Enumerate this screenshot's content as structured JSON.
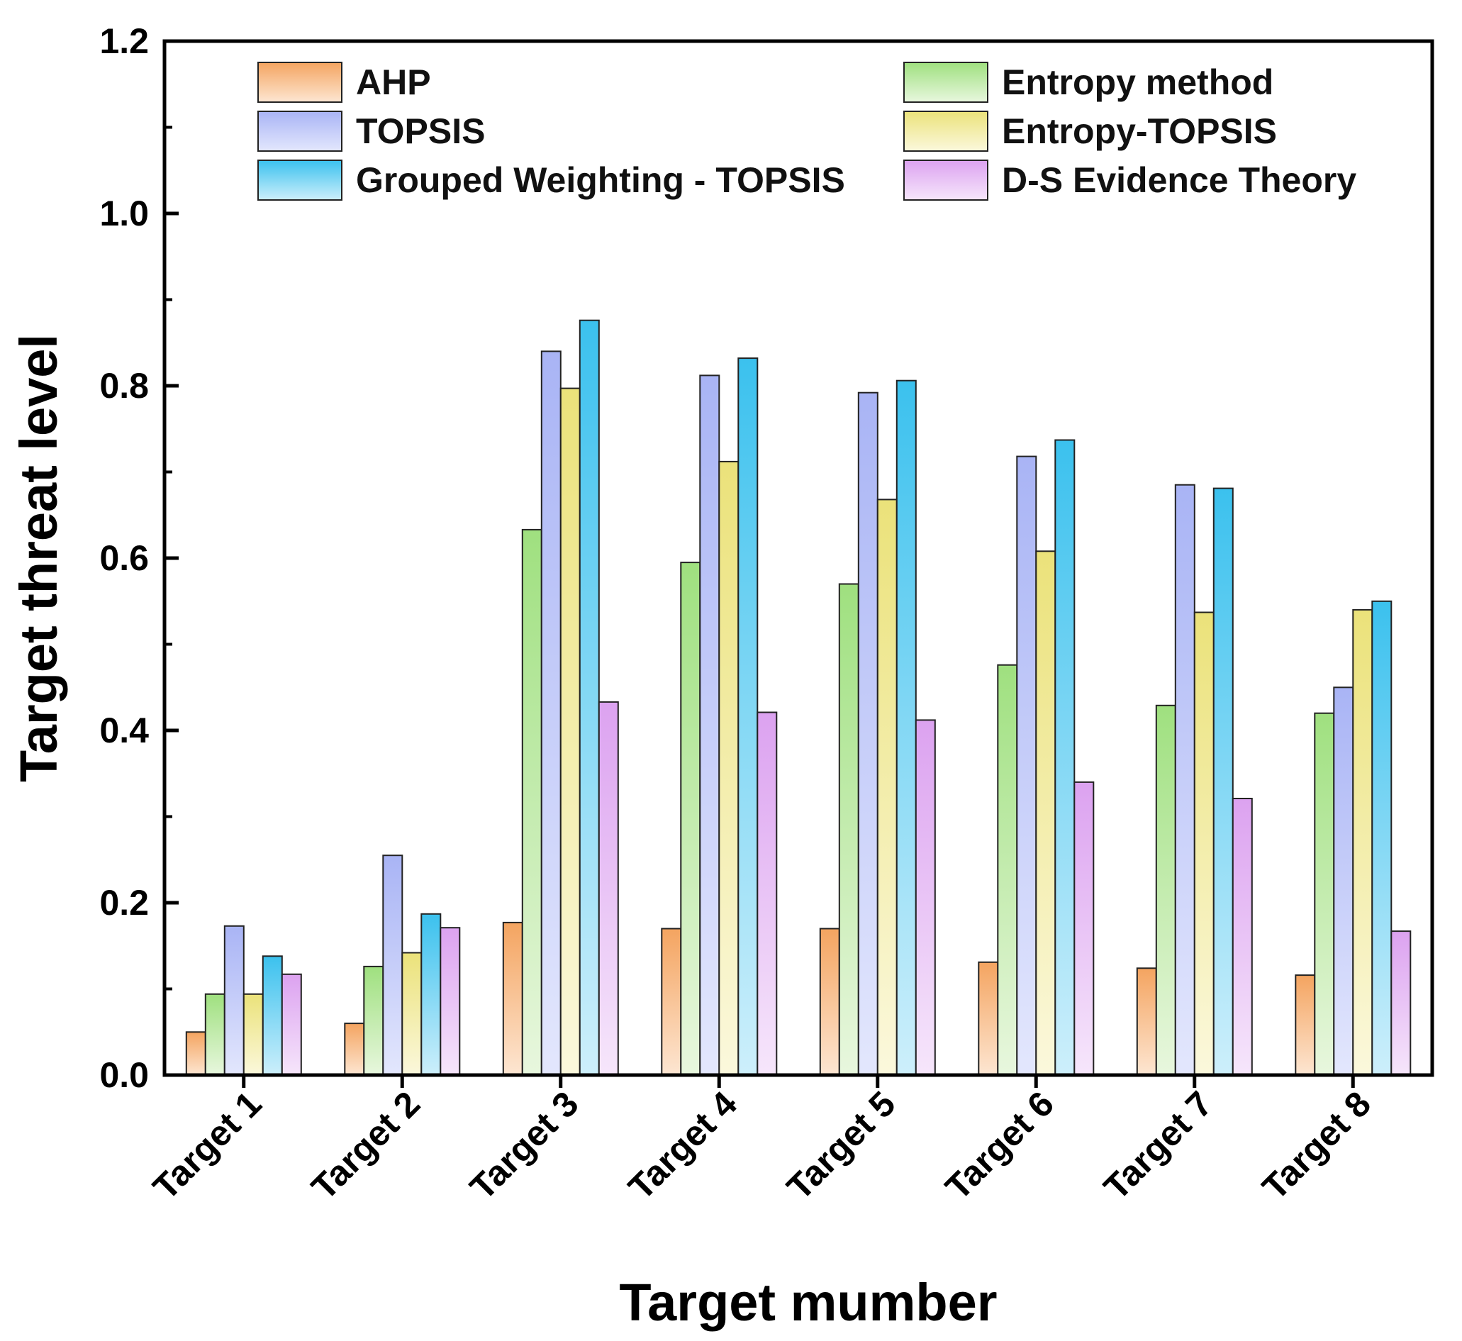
{
  "chart_data": {
    "type": "bar",
    "title": "",
    "xlabel": "Target mumber",
    "ylabel": "Target threat level",
    "ylim": [
      0,
      1.2
    ],
    "yticks": [
      "0.0",
      "0.2",
      "0.4",
      "0.6",
      "0.8",
      "1.0",
      "1.2"
    ],
    "grid": false,
    "legend_position": "top",
    "categories": [
      "Target 1",
      "Target 2",
      "Target 3",
      "Target 4",
      "Target 5",
      "Target 6",
      "Target 7",
      "Target 8"
    ],
    "series": [
      {
        "name": "AHP",
        "color_top": "#f4a460",
        "color_bottom": "#fde6d2",
        "values": [
          0.05,
          0.06,
          0.177,
          0.17,
          0.17,
          0.131,
          0.124,
          0.116
        ]
      },
      {
        "name": "Entropy method",
        "color_top": "#9fe07f",
        "color_bottom": "#e8f7de",
        "values": [
          0.094,
          0.126,
          0.633,
          0.595,
          0.57,
          0.476,
          0.429,
          0.42
        ]
      },
      {
        "name": "TOPSIS",
        "color_top": "#a9b4f5",
        "color_bottom": "#e3e7fd",
        "values": [
          0.173,
          0.255,
          0.84,
          0.812,
          0.792,
          0.718,
          0.685,
          0.45
        ]
      },
      {
        "name": "Entropy-TOPSIS",
        "color_top": "#ebe27a",
        "color_bottom": "#fbf8dc",
        "values": [
          0.094,
          0.142,
          0.797,
          0.712,
          0.668,
          0.608,
          0.537,
          0.54
        ]
      },
      {
        "name": "Grouped Weighting - TOPSIS",
        "color_top": "#3bc1ee",
        "color_bottom": "#cdeffb",
        "values": [
          0.138,
          0.187,
          0.876,
          0.832,
          0.806,
          0.737,
          0.681,
          0.55
        ]
      },
      {
        "name": "D-S Evidence Theory",
        "color_top": "#dca2f0",
        "color_bottom": "#f6e6fb",
        "values": [
          0.117,
          0.171,
          0.433,
          0.421,
          0.412,
          0.34,
          0.321,
          0.167
        ]
      }
    ]
  }
}
